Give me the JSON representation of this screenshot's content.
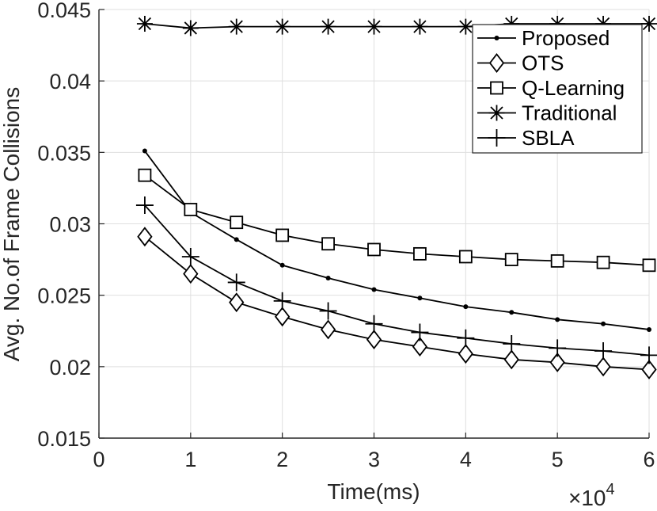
{
  "chart_data": {
    "type": "line",
    "title": "",
    "xlabel": "Time(ms)",
    "ylabel": "Avg. No.of Frame Collisions",
    "x_multiplier_label": "×10",
    "x_multiplier_exponent": "4",
    "xlim": [
      0,
      6
    ],
    "ylim": [
      0.015,
      0.045
    ],
    "x_ticks": [
      0,
      1,
      2,
      3,
      4,
      5,
      6
    ],
    "x_tick_labels": [
      "0",
      "1",
      "2",
      "3",
      "4",
      "5",
      "6"
    ],
    "y_ticks": [
      0.015,
      0.02,
      0.025,
      0.03,
      0.035,
      0.04,
      0.045
    ],
    "y_tick_labels": [
      "0.015",
      "0.02",
      "0.025",
      "0.03",
      "0.035",
      "0.04",
      "0.045"
    ],
    "grid": true,
    "legend_position": "top-right",
    "x": [
      0.5,
      1,
      1.5,
      2,
      2.5,
      3,
      3.5,
      4,
      4.5,
      5,
      5.5,
      6
    ],
    "series": [
      {
        "name": "Proposed",
        "marker": "dot",
        "values": [
          0.0351,
          0.0308,
          0.0289,
          0.0271,
          0.0262,
          0.0254,
          0.0248,
          0.0242,
          0.0238,
          0.0233,
          0.023,
          0.0226
        ]
      },
      {
        "name": "OTS",
        "marker": "diamond",
        "values": [
          0.0291,
          0.0265,
          0.0245,
          0.0235,
          0.0226,
          0.0219,
          0.0214,
          0.0209,
          0.0205,
          0.0203,
          0.02,
          0.0198
        ]
      },
      {
        "name": "Q-Learning",
        "marker": "square",
        "values": [
          0.0334,
          0.031,
          0.0301,
          0.0292,
          0.0286,
          0.0282,
          0.0279,
          0.0277,
          0.0275,
          0.0274,
          0.0273,
          0.0271
        ]
      },
      {
        "name": "Traditional",
        "marker": "asterisk",
        "values": [
          0.044,
          0.0437,
          0.0438,
          0.0438,
          0.0438,
          0.0438,
          0.0438,
          0.0438,
          0.044,
          0.044,
          0.044,
          0.044
        ]
      },
      {
        "name": "SBLA",
        "marker": "plus",
        "values": [
          0.0313,
          0.0277,
          0.0259,
          0.0246,
          0.0239,
          0.023,
          0.0224,
          0.022,
          0.0216,
          0.0213,
          0.0211,
          0.0208
        ]
      }
    ],
    "colors": {
      "line": "#000000",
      "grid": "#dfdfdf",
      "axis": "#262626"
    }
  }
}
